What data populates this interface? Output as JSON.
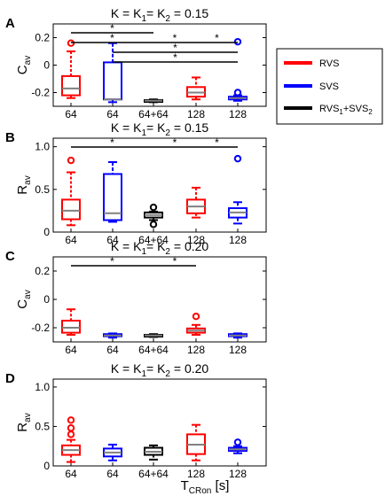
{
  "colors": {
    "rvs": "#ff0000",
    "svs": "#0000ff",
    "combined": "#000000",
    "median": "#808080"
  },
  "legend": {
    "items": [
      {
        "label": "RVS",
        "color": "#ff0000"
      },
      {
        "label": "SVS",
        "color": "#0000ff"
      },
      {
        "label": "RVS1+SVS2",
        "color": "#000000"
      }
    ]
  },
  "xlabel": "TCRon [s]",
  "chart_data": [
    {
      "type": "box",
      "panel_label": "A",
      "title": "K = K1= K2 = 0.15",
      "ylabel": "Cav",
      "ylim": [
        -0.3,
        0.3
      ],
      "yticks": [
        "0.2",
        "0",
        "-0.2"
      ],
      "ytick_values": [
        0.2,
        0,
        -0.2
      ],
      "categories": [
        "64",
        "64",
        "64+64",
        "128",
        "128"
      ],
      "boxes": [
        {
          "series": "RVS",
          "min": -0.24,
          "q1": -0.22,
          "median": -0.17,
          "q3": -0.08,
          "max": 0.1,
          "outliers": [
            0.16
          ]
        },
        {
          "series": "SVS",
          "min": -0.27,
          "q1": -0.25,
          "median": -0.25,
          "q3": 0.02,
          "max": 0.16,
          "outliers": []
        },
        {
          "series": "RVS1+SVS2",
          "min": -0.27,
          "q1": -0.265,
          "median": -0.26,
          "q3": -0.255,
          "max": -0.25,
          "outliers": []
        },
        {
          "series": "RVS",
          "min": -0.25,
          "q1": -0.23,
          "median": -0.2,
          "q3": -0.16,
          "max": -0.09,
          "outliers": []
        },
        {
          "series": "SVS",
          "min": -0.26,
          "q1": -0.25,
          "median": -0.24,
          "q3": -0.23,
          "max": -0.22,
          "outliers": [
            -0.2,
            0.17
          ]
        }
      ],
      "significance": [
        {
          "from": 1,
          "to": 3,
          "level": 0,
          "label": "*"
        },
        {
          "from": 1,
          "to": 3,
          "level": 1,
          "label": "*"
        },
        {
          "from": 3,
          "to": 4,
          "level": 1,
          "label": "*"
        },
        {
          "from": 2,
          "to": 5,
          "level": 2,
          "label": "*"
        },
        {
          "from": 2,
          "to": 5,
          "level": 3,
          "label": "*"
        },
        {
          "from": 4,
          "to": 5,
          "level": 1,
          "label": "*"
        }
      ]
    },
    {
      "type": "box",
      "panel_label": "B",
      "title": "K = K1= K2 = 0.15",
      "ylabel": "Rav",
      "ylim": [
        0,
        1.1
      ],
      "yticks": [
        "1.0",
        "0.5",
        "0"
      ],
      "ytick_values": [
        1.0,
        0.5,
        0
      ],
      "categories": [
        "64",
        "64",
        "64+64",
        "128",
        "128"
      ],
      "boxes": [
        {
          "series": "RVS",
          "min": 0.08,
          "q1": 0.15,
          "median": 0.25,
          "q3": 0.38,
          "max": 0.7,
          "outliers": [
            0.84
          ]
        },
        {
          "series": "SVS",
          "min": 0.12,
          "q1": 0.14,
          "median": 0.22,
          "q3": 0.68,
          "max": 0.82,
          "outliers": []
        },
        {
          "series": "RVS1+SVS2",
          "min": 0.14,
          "q1": 0.17,
          "median": 0.2,
          "q3": 0.23,
          "max": 0.24,
          "outliers": [
            0.09,
            0.29
          ]
        },
        {
          "series": "RVS",
          "min": 0.17,
          "q1": 0.22,
          "median": 0.3,
          "q3": 0.38,
          "max": 0.52,
          "outliers": []
        },
        {
          "series": "SVS",
          "min": 0.1,
          "q1": 0.17,
          "median": 0.23,
          "q3": 0.28,
          "max": 0.35,
          "outliers": [
            0.86
          ]
        }
      ],
      "significance": [
        {
          "from": 1,
          "to": 3,
          "level": 0,
          "label": "*"
        },
        {
          "from": 3,
          "to": 4,
          "level": 0,
          "label": "*"
        },
        {
          "from": 4,
          "to": 5,
          "level": 0,
          "label": "*"
        }
      ]
    },
    {
      "type": "box",
      "panel_label": "C",
      "title": "K = K1= K2 = 0.20",
      "ylabel": "Cav",
      "ylim": [
        -0.3,
        0.3
      ],
      "yticks": [
        "0.2",
        "0",
        "-0.2"
      ],
      "ytick_values": [
        0.2,
        0,
        -0.2
      ],
      "categories": [
        "64",
        "64",
        "64+64",
        "128",
        "128"
      ],
      "boxes": [
        {
          "series": "RVS",
          "min": -0.25,
          "q1": -0.235,
          "median": -0.2,
          "q3": -0.15,
          "max": -0.07,
          "outliers": []
        },
        {
          "series": "SVS",
          "min": -0.27,
          "q1": -0.26,
          "median": -0.255,
          "q3": -0.245,
          "max": -0.24,
          "outliers": []
        },
        {
          "series": "RVS1+SVS2",
          "min": -0.265,
          "q1": -0.26,
          "median": -0.255,
          "q3": -0.25,
          "max": -0.245,
          "outliers": []
        },
        {
          "series": "RVS",
          "min": -0.25,
          "q1": -0.235,
          "median": -0.22,
          "q3": -0.205,
          "max": -0.18,
          "outliers": [
            -0.12
          ]
        },
        {
          "series": "SVS",
          "min": -0.27,
          "q1": -0.26,
          "median": -0.255,
          "q3": -0.245,
          "max": -0.24,
          "outliers": []
        }
      ],
      "significance": [
        {
          "from": 1,
          "to": 3,
          "level": 0,
          "label": "*"
        },
        {
          "from": 3,
          "to": 4,
          "level": 0,
          "label": "*"
        }
      ]
    },
    {
      "type": "box",
      "panel_label": "D",
      "title": "K = K1= K2 = 0.20",
      "ylabel": "Rav",
      "ylim": [
        0,
        1.1
      ],
      "yticks": [
        "1.0",
        "0.5",
        "0"
      ],
      "ytick_values": [
        1.0,
        0.5,
        0
      ],
      "categories": [
        "64",
        "64",
        "64+64",
        "128",
        "128"
      ],
      "boxes": [
        {
          "series": "RVS",
          "min": 0.05,
          "q1": 0.14,
          "median": 0.2,
          "q3": 0.26,
          "max": 0.33,
          "outliers": [
            0.4,
            0.48,
            0.58
          ]
        },
        {
          "series": "SVS",
          "min": 0.07,
          "q1": 0.12,
          "median": 0.17,
          "q3": 0.22,
          "max": 0.27,
          "outliers": []
        },
        {
          "series": "RVS1+SVS2",
          "min": 0.08,
          "q1": 0.14,
          "median": 0.18,
          "q3": 0.23,
          "max": 0.26,
          "outliers": []
        },
        {
          "series": "RVS",
          "min": 0.07,
          "q1": 0.15,
          "median": 0.27,
          "q3": 0.4,
          "max": 0.52,
          "outliers": []
        },
        {
          "series": "SVS",
          "min": 0.16,
          "q1": 0.19,
          "median": 0.21,
          "q3": 0.23,
          "max": 0.25,
          "outliers": [
            0.3
          ]
        }
      ],
      "significance": []
    }
  ]
}
